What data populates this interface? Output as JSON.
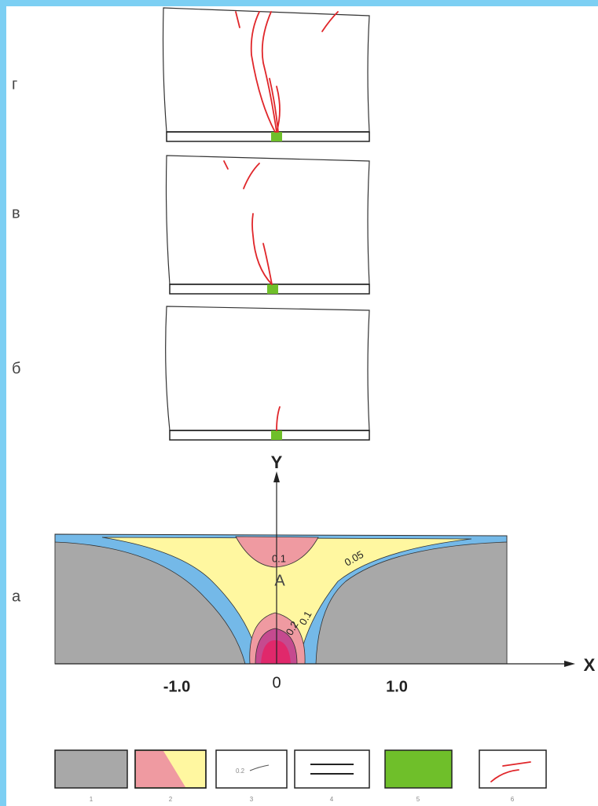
{
  "panels": [
    {
      "label": "г"
    },
    {
      "label": "в"
    },
    {
      "label": "б"
    }
  ],
  "plot": {
    "panel_label": "а",
    "y_axis": "Y",
    "x_axis": "X",
    "x_ticks": [
      "-1.0",
      "0",
      "1.0"
    ],
    "point": "A",
    "contours": [
      "0.1",
      "0.05",
      "0.1",
      "0.2"
    ]
  },
  "legend": {
    "items": [
      "1",
      "2",
      "3",
      "4",
      "5",
      "6"
    ],
    "sample_label": "0.2"
  }
}
